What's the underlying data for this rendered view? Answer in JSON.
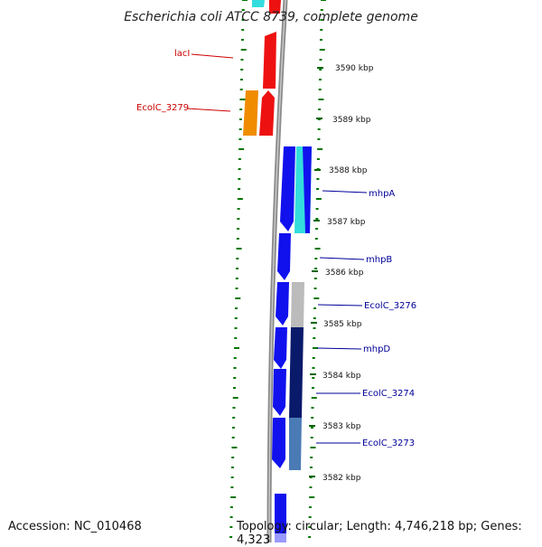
{
  "title": "Escherichia coli ATCC 8739, complete genome",
  "footer": {
    "accession": "Accession: NC_010468",
    "topology": "Topology: circular; Length: 4,746,218 bp; Genes: 4,323"
  },
  "colors": {
    "backbone": "#888888",
    "tick_green": "#007700",
    "red_label": "#cc0000",
    "blue_label": "#000099"
  },
  "scale_labels": [
    {
      "text": "3590 kbp"
    },
    {
      "text": "3589 kbp"
    },
    {
      "text": "3588 kbp"
    },
    {
      "text": "3587 kbp"
    },
    {
      "text": "3586 kbp"
    },
    {
      "text": "3585 kbp"
    },
    {
      "text": "3584 kbp"
    },
    {
      "text": "3583 kbp"
    },
    {
      "text": "3582 kbp"
    }
  ],
  "gene_labels": [
    {
      "text": "lacI",
      "color": "red"
    },
    {
      "text": "EcolC_3279",
      "color": "red"
    },
    {
      "text": "mhpA",
      "color": "blue"
    },
    {
      "text": "mhpB",
      "color": "blue"
    },
    {
      "text": "EcolC_3276",
      "color": "blue"
    },
    {
      "text": "mhpD",
      "color": "blue"
    },
    {
      "text": "EcolC_3274",
      "color": "blue"
    },
    {
      "text": "EcolC_3273",
      "color": "blue"
    }
  ]
}
